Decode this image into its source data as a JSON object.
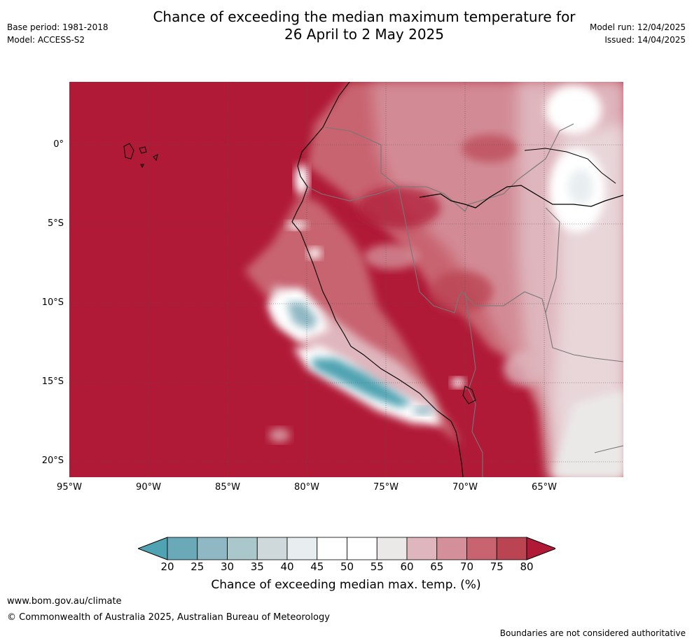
{
  "title_line1": "Chance of exceeding the median maximum temperature for",
  "title_line2": "26 April to 2 May 2025",
  "meta_left": {
    "base_period": "Base period: 1981-2018",
    "model": "Model: ACCESS-S2"
  },
  "meta_right": {
    "model_run": "Model run: 12/04/2025",
    "issued": "Issued: 14/04/2025"
  },
  "lat_ticks": [
    "0°",
    "5°S",
    "10°S",
    "15°S",
    "20°S"
  ],
  "lon_ticks": [
    "95°W",
    "90°W",
    "85°W",
    "80°W",
    "75°W",
    "70°W",
    "65°W"
  ],
  "colorbar": {
    "labels": [
      "20",
      "25",
      "30",
      "35",
      "40",
      "45",
      "50",
      "55",
      "60",
      "65",
      "70",
      "75",
      "80"
    ],
    "colors": [
      "#4fa3b2",
      "#6aaab8",
      "#8fb8c4",
      "#aac8cc",
      "#cfd8da",
      "#e8eef0",
      "#ffffff",
      "#ffffff",
      "#ebe9e8",
      "#dfb6bd",
      "#d4909a",
      "#c8646f",
      "#bb4452",
      "#b01a37"
    ],
    "title": "Chance of exceeding median max. temp. (%)"
  },
  "footer": {
    "url": "www.bom.gov.au/climate",
    "copyright": "© Commonwealth of Australia 2025, Australian Bureau of Meteorology",
    "disclaimer": "Boundaries are not considered authoritative"
  }
}
